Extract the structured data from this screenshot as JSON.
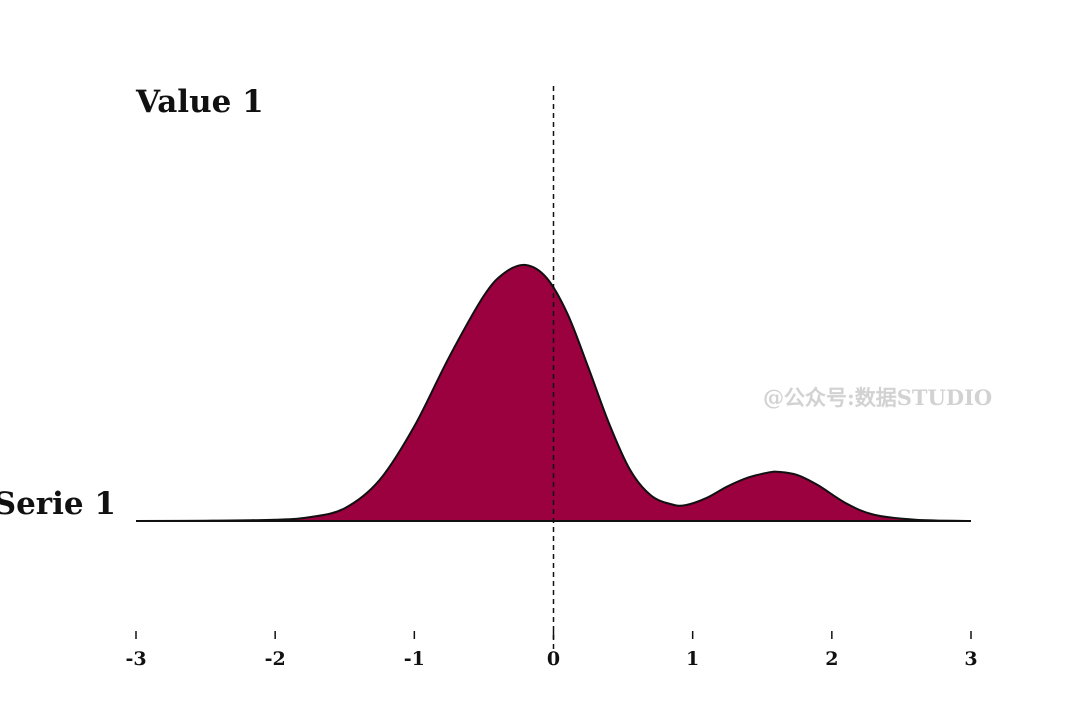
{
  "chart_data": {
    "type": "area",
    "title": "Value 1",
    "xlabel": "",
    "ylabel": "",
    "xlim": [
      -3,
      3
    ],
    "x_ticks": [
      -3,
      -2,
      -1,
      0,
      1,
      2,
      3
    ],
    "x_tick_labels": [
      "-3",
      "-2",
      "-1",
      "0",
      "1",
      "2",
      "3"
    ],
    "reference_line_x": 0,
    "fill_color": "#9b003f",
    "outline_color": "#111111",
    "grid": false,
    "series": [
      {
        "name": "Serie 1",
        "x": [
          -3.0,
          -2.5,
          -2.0,
          -1.75,
          -1.5,
          -1.25,
          -1.0,
          -0.75,
          -0.5,
          -0.35,
          -0.2,
          -0.05,
          0.1,
          0.25,
          0.4,
          0.55,
          0.7,
          0.85,
          0.95,
          1.1,
          1.25,
          1.4,
          1.55,
          1.62,
          1.75,
          1.9,
          2.1,
          2.3,
          2.6,
          3.0
        ],
        "y": [
          0.0,
          0.001,
          0.005,
          0.015,
          0.05,
          0.16,
          0.37,
          0.64,
          0.88,
          0.97,
          1.0,
          0.95,
          0.81,
          0.6,
          0.38,
          0.2,
          0.1,
          0.065,
          0.062,
          0.09,
          0.135,
          0.17,
          0.19,
          0.192,
          0.18,
          0.14,
          0.07,
          0.025,
          0.005,
          0.0
        ]
      }
    ]
  },
  "watermark": "@公众号:数据STUDIO"
}
